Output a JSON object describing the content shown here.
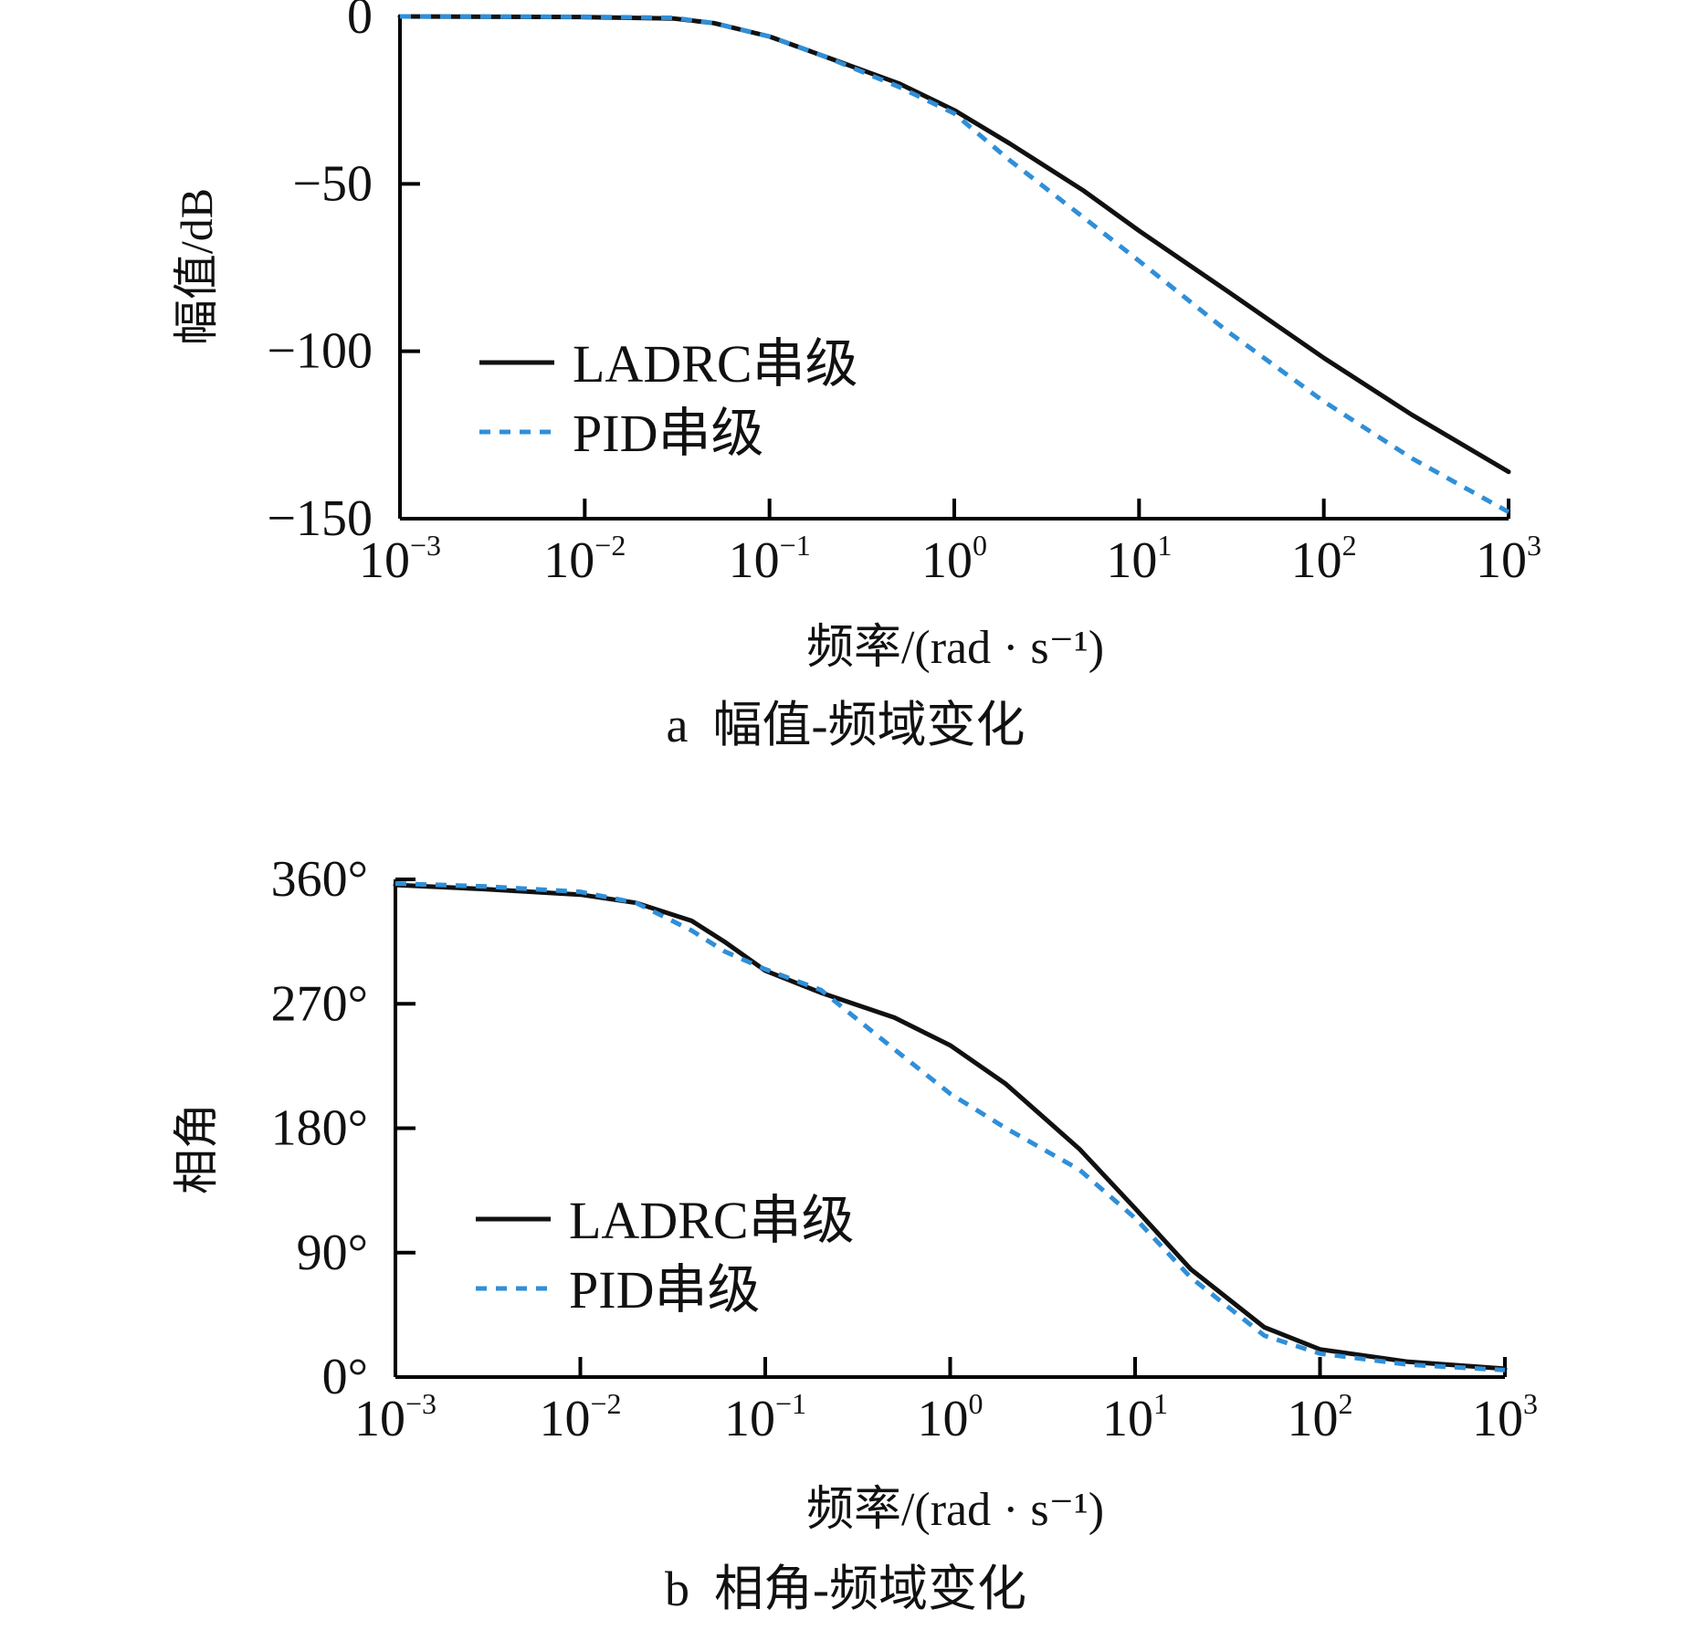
{
  "colors": {
    "axis": "#000000",
    "ladrc": "#111111",
    "pid": "#2f8fd8"
  },
  "chart_data": [
    {
      "type": "line",
      "caption": "a  幅值-频域变化",
      "xlabel": "频率/(rad · s⁻¹)",
      "ylabel": "幅值/dB",
      "xscale": "log",
      "xlim": [
        0.001,
        1000
      ],
      "ylim": [
        -150,
        0
      ],
      "xticks": [
        {
          "value": 0.001,
          "base": "10",
          "exp": "−3"
        },
        {
          "value": 0.01,
          "base": "10",
          "exp": "−2"
        },
        {
          "value": 0.1,
          "base": "10",
          "exp": "−1"
        },
        {
          "value": 1,
          "base": "10",
          "exp": "0"
        },
        {
          "value": 10,
          "base": "10",
          "exp": "1"
        },
        {
          "value": 100,
          "base": "10",
          "exp": "2"
        },
        {
          "value": 1000,
          "base": "10",
          "exp": "3"
        }
      ],
      "yticks": [
        {
          "value": 0,
          "label": "0"
        },
        {
          "value": -50,
          "label": "−50"
        },
        {
          "value": -100,
          "label": "−100"
        },
        {
          "value": -150,
          "label": "−150"
        }
      ],
      "legend": {
        "position": "center-left"
      },
      "series": [
        {
          "name": "LADRC串级",
          "style": "solid",
          "x": [
            0.001,
            0.01,
            0.03,
            0.05,
            0.1,
            0.2,
            0.5,
            1,
            2,
            5,
            10,
            30,
            100,
            300,
            1000
          ],
          "y": [
            0,
            -0.2,
            -0.6,
            -2,
            -6,
            -12,
            -20,
            -28,
            -38,
            -52,
            -64,
            -82,
            -102,
            -119,
            -136
          ]
        },
        {
          "name": "PID串级",
          "style": "dashed",
          "x": [
            0.001,
            0.01,
            0.03,
            0.05,
            0.1,
            0.2,
            0.5,
            1,
            2,
            5,
            10,
            30,
            100,
            300,
            1000
          ],
          "y": [
            0,
            -0.1,
            -0.4,
            -2,
            -6,
            -12,
            -21,
            -29,
            -43,
            -60,
            -73,
            -94,
            -115,
            -132,
            -148
          ]
        }
      ]
    },
    {
      "type": "line",
      "caption": "b  相角-频域变化",
      "xlabel": "频率/(rad · s⁻¹)",
      "ylabel": "相角",
      "xscale": "log",
      "xlim": [
        0.001,
        1000
      ],
      "ylim": [
        0,
        360
      ],
      "xticks": [
        {
          "value": 0.001,
          "base": "10",
          "exp": "−3"
        },
        {
          "value": 0.01,
          "base": "10",
          "exp": "−2"
        },
        {
          "value": 0.1,
          "base": "10",
          "exp": "−1"
        },
        {
          "value": 1,
          "base": "10",
          "exp": "0"
        },
        {
          "value": 10,
          "base": "10",
          "exp": "1"
        },
        {
          "value": 100,
          "base": "10",
          "exp": "2"
        },
        {
          "value": 1000,
          "base": "10",
          "exp": "3"
        }
      ],
      "yticks": [
        {
          "value": 0,
          "label": "0°"
        },
        {
          "value": 90,
          "label": "90°"
        },
        {
          "value": 180,
          "label": "180°"
        },
        {
          "value": 270,
          "label": "270°"
        },
        {
          "value": 360,
          "label": "360°"
        }
      ],
      "legend": {
        "position": "center-left"
      },
      "series": [
        {
          "name": "LADRC串级",
          "style": "solid",
          "x": [
            0.001,
            0.003,
            0.01,
            0.02,
            0.04,
            0.06,
            0.1,
            0.2,
            0.5,
            1,
            2,
            5,
            10,
            20,
            50,
            100,
            300,
            1000
          ],
          "y": [
            356,
            353,
            349,
            343,
            330,
            315,
            294,
            278,
            260,
            240,
            212,
            165,
            122,
            78,
            36,
            20,
            11,
            6
          ]
        },
        {
          "name": "PID串级",
          "style": "dashed",
          "x": [
            0.001,
            0.003,
            0.01,
            0.02,
            0.04,
            0.06,
            0.1,
            0.2,
            0.5,
            1,
            2,
            5,
            10,
            20,
            50,
            100,
            300,
            1000
          ],
          "y": [
            357,
            355,
            351,
            343,
            323,
            308,
            295,
            280,
            237,
            205,
            180,
            150,
            115,
            72,
            30,
            17,
            9,
            5
          ]
        }
      ]
    }
  ]
}
